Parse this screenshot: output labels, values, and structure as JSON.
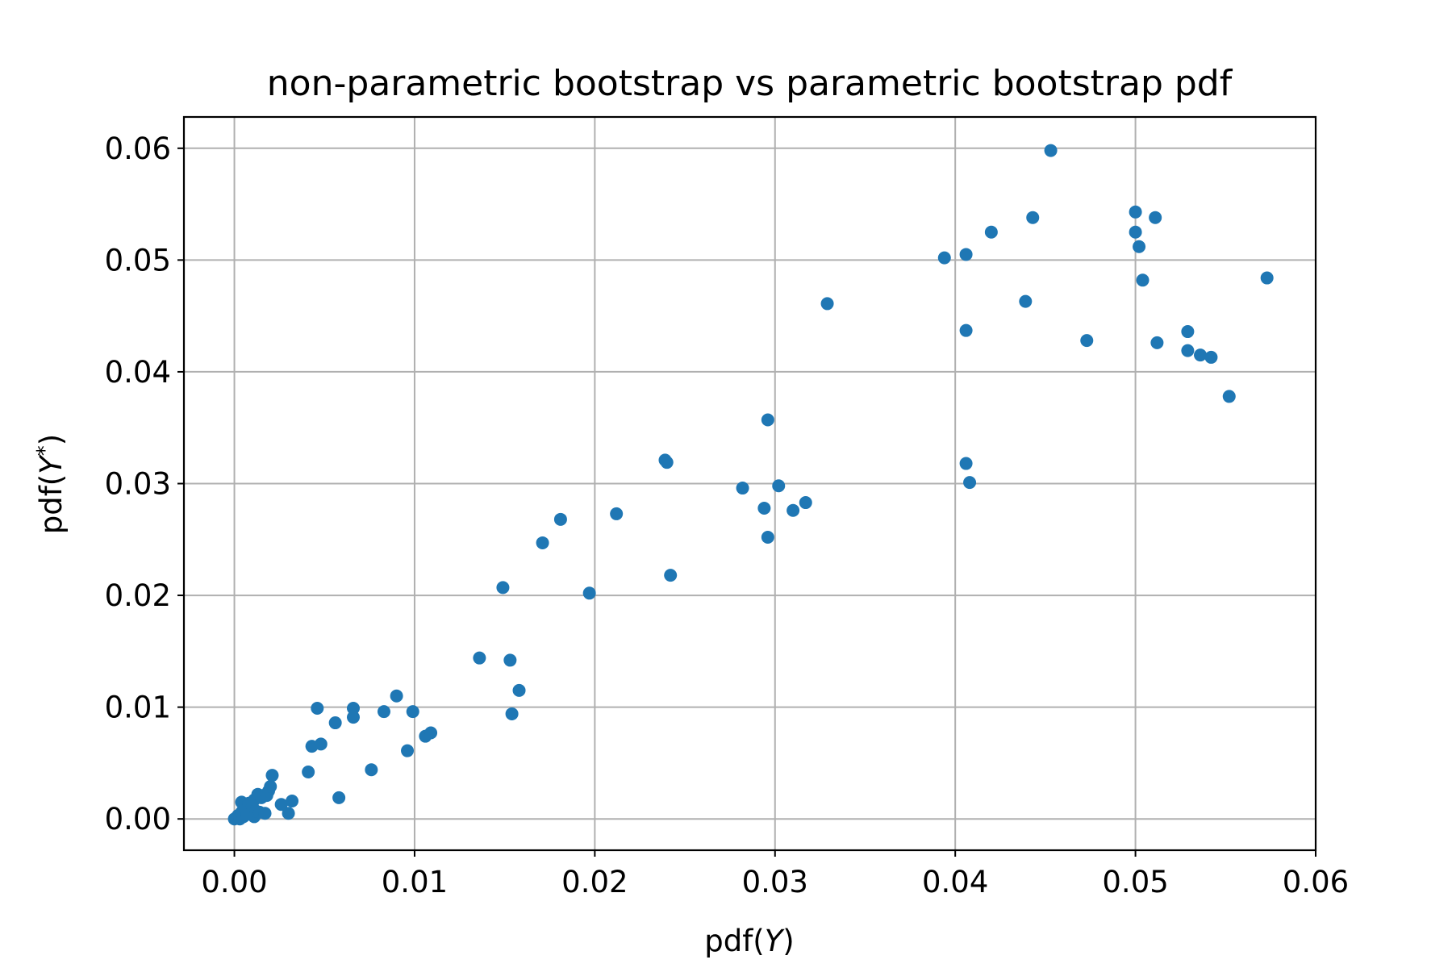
{
  "chart_data": {
    "type": "scatter",
    "title": "non-parametric bootstrap vs parametric bootstrap pdf",
    "xlabel": {
      "prefix": "pdf(",
      "var": "Y",
      "suffix": ")"
    },
    "ylabel": {
      "prefix": "pdf(",
      "var": "Y",
      "sup": "*",
      "suffix": ")"
    },
    "xlim": [
      -0.0028,
      0.06
    ],
    "ylim": [
      -0.0028,
      0.0628
    ],
    "xticks": [
      0.0,
      0.01,
      0.02,
      0.03,
      0.04,
      0.05,
      0.06
    ],
    "yticks": [
      0.0,
      0.01,
      0.02,
      0.03,
      0.04,
      0.05,
      0.06
    ],
    "xtick_labels": [
      "0.00",
      "0.01",
      "0.02",
      "0.03",
      "0.04",
      "0.05",
      "0.06"
    ],
    "ytick_labels": [
      "0.00",
      "0.01",
      "0.02",
      "0.03",
      "0.04",
      "0.05",
      "0.06"
    ],
    "grid": true,
    "marker_color": "#1f77b4",
    "points": [
      [
        0.0,
        0.0
      ],
      [
        0.0001,
        0.0001
      ],
      [
        0.0002,
        0.0003
      ],
      [
        0.0003,
        0.0
      ],
      [
        0.0004,
        0.0006
      ],
      [
        0.0004,
        0.0015
      ],
      [
        0.0005,
        0.0002
      ],
      [
        0.0006,
        0.001
      ],
      [
        0.0007,
        0.0004
      ],
      [
        0.0008,
        0.0014
      ],
      [
        0.0009,
        0.0008
      ],
      [
        0.001,
        0.0011
      ],
      [
        0.0011,
        0.0002
      ],
      [
        0.0011,
        0.0017
      ],
      [
        0.0012,
        0.0007
      ],
      [
        0.0013,
        0.0022
      ],
      [
        0.0014,
        0.0006
      ],
      [
        0.0015,
        0.0019
      ],
      [
        0.0016,
        0.0021
      ],
      [
        0.0017,
        0.0005
      ],
      [
        0.0018,
        0.0021
      ],
      [
        0.0019,
        0.0025
      ],
      [
        0.002,
        0.0029
      ],
      [
        0.0021,
        0.0039
      ],
      [
        0.0026,
        0.0013
      ],
      [
        0.003,
        0.0005
      ],
      [
        0.0032,
        0.0016
      ],
      [
        0.0041,
        0.0042
      ],
      [
        0.0043,
        0.0065
      ],
      [
        0.0046,
        0.0099
      ],
      [
        0.0048,
        0.0067
      ],
      [
        0.0056,
        0.0086
      ],
      [
        0.0058,
        0.0019
      ],
      [
        0.0066,
        0.0099
      ],
      [
        0.0066,
        0.0091
      ],
      [
        0.0076,
        0.0044
      ],
      [
        0.0083,
        0.0096
      ],
      [
        0.009,
        0.011
      ],
      [
        0.0096,
        0.0061
      ],
      [
        0.0099,
        0.0096
      ],
      [
        0.0106,
        0.0074
      ],
      [
        0.0109,
        0.0077
      ],
      [
        0.0136,
        0.0144
      ],
      [
        0.0149,
        0.0207
      ],
      [
        0.0153,
        0.0142
      ],
      [
        0.0154,
        0.0094
      ],
      [
        0.0158,
        0.0115
      ],
      [
        0.0171,
        0.0247
      ],
      [
        0.0181,
        0.0268
      ],
      [
        0.0197,
        0.0202
      ],
      [
        0.0212,
        0.0273
      ],
      [
        0.0239,
        0.0321
      ],
      [
        0.024,
        0.0319
      ],
      [
        0.0242,
        0.0218
      ],
      [
        0.0282,
        0.0296
      ],
      [
        0.0294,
        0.0278
      ],
      [
        0.0296,
        0.0357
      ],
      [
        0.0296,
        0.0252
      ],
      [
        0.0302,
        0.0298
      ],
      [
        0.031,
        0.0276
      ],
      [
        0.0317,
        0.0283
      ],
      [
        0.0329,
        0.0461
      ],
      [
        0.0394,
        0.0502
      ],
      [
        0.0406,
        0.0505
      ],
      [
        0.0406,
        0.0437
      ],
      [
        0.0406,
        0.0318
      ],
      [
        0.0408,
        0.0301
      ],
      [
        0.042,
        0.0525
      ],
      [
        0.0439,
        0.0463
      ],
      [
        0.0443,
        0.0538
      ],
      [
        0.0453,
        0.0598
      ],
      [
        0.0473,
        0.0428
      ],
      [
        0.05,
        0.0543
      ],
      [
        0.05,
        0.0525
      ],
      [
        0.0502,
        0.0512
      ],
      [
        0.0504,
        0.0482
      ],
      [
        0.0511,
        0.0538
      ],
      [
        0.0512,
        0.0426
      ],
      [
        0.0529,
        0.0436
      ],
      [
        0.0529,
        0.0419
      ],
      [
        0.0536,
        0.0415
      ],
      [
        0.0542,
        0.0413
      ],
      [
        0.0552,
        0.0378
      ],
      [
        0.0573,
        0.0484
      ]
    ]
  }
}
